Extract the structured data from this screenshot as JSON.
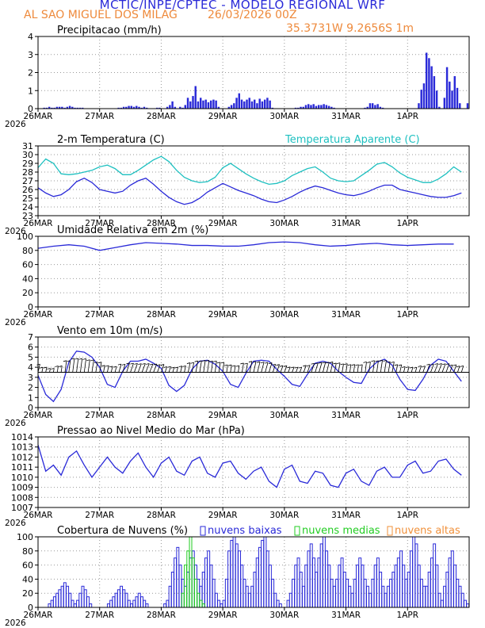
{
  "header": {
    "title": "MCTIC/INPE/CPTEC - MODELO REGIONAL WRF",
    "location": "AL SAO MIGUEL DOS MILAG",
    "datetime": "26/03/2026 00Z",
    "coords": "35.3731W 9.2656S 1m"
  },
  "colors": {
    "blue": "#2a2ad8",
    "cyan": "#1ec0c0",
    "green": "#22cc22",
    "orange": "#f0903a",
    "grid": "#999999"
  },
  "x_axis": {
    "tick_labels": [
      "26MAR",
      "27MAR",
      "28MAR",
      "29MAR",
      "30MAR",
      "31MAR",
      "1APR"
    ],
    "year_label": "2026",
    "hours": [
      0,
      168
    ],
    "tick_hours": [
      0,
      24,
      48,
      72,
      96,
      120,
      144
    ]
  },
  "chart_data": [
    {
      "id": "precip",
      "type": "bar",
      "title": "Precipitacao (mm/h)",
      "ylim": [
        0,
        4
      ],
      "yticks": [
        0,
        1,
        2,
        3,
        4
      ],
      "series": [
        {
          "name": "Precipitacao",
          "color": "#2a2ad8",
          "x_step_hours": 1,
          "values": [
            0,
            0,
            0.05,
            0.05,
            0.1,
            0.05,
            0.05,
            0.1,
            0.1,
            0.1,
            0.05,
            0.1,
            0.15,
            0.1,
            0.05,
            0.05,
            0.05,
            0.05,
            0,
            0,
            0,
            0,
            0,
            0,
            0,
            0,
            0,
            0,
            0,
            0,
            0,
            0.05,
            0.05,
            0.1,
            0.1,
            0.15,
            0.15,
            0.1,
            0.15,
            0.1,
            0.05,
            0.1,
            0.05,
            0,
            0,
            0,
            0.05,
            0.05,
            0,
            0,
            0.1,
            0.2,
            0.4,
            0.1,
            0,
            0.1,
            0.05,
            0.2,
            0.6,
            0.4,
            0.7,
            1.25,
            0.4,
            0.6,
            0.45,
            0.5,
            0.35,
            0.45,
            0.5,
            0.45,
            0.1,
            0,
            0,
            0,
            0.1,
            0.2,
            0.3,
            0.6,
            0.85,
            0.5,
            0.4,
            0.5,
            0.6,
            0.4,
            0.5,
            0.3,
            0.55,
            0.4,
            0.5,
            0.6,
            0.45,
            0.05,
            0,
            0,
            0,
            0,
            0,
            0,
            0,
            0,
            0.05,
            0.05,
            0.1,
            0.1,
            0.2,
            0.25,
            0.2,
            0.25,
            0.15,
            0.2,
            0.2,
            0.25,
            0.2,
            0.15,
            0.1,
            0.05,
            0,
            0,
            0,
            0,
            0,
            0,
            0,
            0,
            0,
            0,
            0,
            0.05,
            0.1,
            0.3,
            0.3,
            0.2,
            0.25,
            0.1,
            0.05,
            0,
            0,
            0,
            0,
            0,
            0,
            0,
            0,
            0,
            0,
            0,
            0,
            0,
            0.3,
            1.05,
            1.4,
            3.1,
            2.8,
            2.35,
            1.8,
            1.0,
            0.1,
            0,
            0.6,
            2.3,
            1.5,
            1.0,
            1.8,
            1.15,
            0.3,
            0,
            0,
            0.3
          ]
        }
      ]
    },
    {
      "id": "temp",
      "type": "line",
      "title": "2-m Temperatura (C)",
      "ylim": [
        23,
        31
      ],
      "yticks": [
        23,
        24,
        25,
        26,
        27,
        28,
        29,
        30,
        31
      ],
      "legend": "Temperatura Aparente (C)",
      "series": [
        {
          "name": "2-m Temperatura (C)",
          "color": "#2a2ad8",
          "x_step_hours": 3,
          "values": [
            26.2,
            25.6,
            25.2,
            25.4,
            26.0,
            26.9,
            27.3,
            26.8,
            26.0,
            25.8,
            25.6,
            25.8,
            26.5,
            27.0,
            27.3,
            26.6,
            25.8,
            25.1,
            24.6,
            24.3,
            24.5,
            25.0,
            25.7,
            26.2,
            26.7,
            26.3,
            25.9,
            25.6,
            25.3,
            24.9,
            24.6,
            24.5,
            24.8,
            25.2,
            25.7,
            26.1,
            26.4,
            26.2,
            25.9,
            25.6,
            25.4,
            25.3,
            25.5,
            25.8,
            26.2,
            26.5,
            26.5,
            26.0,
            25.8,
            25.6,
            25.4,
            25.2,
            25.1,
            25.1,
            25.3,
            25.6
          ]
        },
        {
          "name": "Temperatura Aparente (C)",
          "color": "#1ec0c0",
          "x_step_hours": 3,
          "values": [
            28.5,
            29.5,
            29.0,
            27.8,
            27.7,
            27.8,
            28.0,
            28.2,
            28.6,
            28.8,
            28.4,
            27.7,
            27.7,
            28.2,
            28.8,
            29.4,
            29.8,
            29.2,
            28.2,
            27.4,
            27.0,
            26.8,
            26.9,
            27.4,
            28.5,
            29.0,
            28.4,
            27.8,
            27.3,
            26.9,
            26.6,
            26.7,
            27.0,
            27.6,
            28.0,
            28.4,
            28.6,
            28.0,
            27.3,
            27.0,
            26.9,
            27.0,
            27.6,
            28.2,
            28.9,
            29.1,
            28.6,
            27.9,
            27.4,
            27.1,
            26.8,
            26.8,
            27.2,
            27.8,
            28.6,
            28.0
          ]
        }
      ]
    },
    {
      "id": "rh",
      "type": "line",
      "title": "Umidade Relativa em 2m (%)",
      "ylim": [
        0,
        100
      ],
      "yticks": [
        0,
        20,
        40,
        60,
        80,
        100
      ],
      "series": [
        {
          "name": "Umidade Relativa",
          "color": "#2a2ad8",
          "x_step_hours": 6,
          "values": [
            83,
            86,
            88,
            86,
            80,
            84,
            88,
            91,
            90,
            89,
            87,
            87,
            86,
            86,
            88,
            91,
            92,
            91,
            88,
            86,
            87,
            89,
            90,
            88,
            87,
            88,
            89,
            89
          ]
        }
      ]
    },
    {
      "id": "wind",
      "type": "line",
      "title": "Vento em 10m (m/s)",
      "ylim": [
        0,
        7
      ],
      "yticks": [
        0,
        1,
        2,
        3,
        4,
        5,
        6,
        7
      ],
      "barbs_at_ms": 3.5,
      "series": [
        {
          "name": "Vento em 10m",
          "color": "#2a2ad8",
          "x_step_hours": 3,
          "values": [
            3.2,
            1.3,
            0.6,
            1.8,
            4.5,
            5.6,
            5.5,
            5.0,
            4.0,
            2.3,
            2.0,
            3.6,
            4.6,
            4.6,
            4.8,
            4.4,
            3.9,
            2.2,
            1.6,
            2.2,
            3.8,
            4.6,
            4.7,
            4.3,
            3.6,
            2.3,
            2.0,
            3.4,
            4.6,
            4.7,
            4.6,
            3.8,
            3.1,
            2.3,
            2.1,
            3.3,
            4.4,
            4.6,
            4.4,
            3.6,
            3.0,
            2.5,
            2.4,
            3.8,
            4.5,
            4.8,
            4.2,
            2.8,
            1.8,
            1.7,
            2.8,
            4.2,
            4.8,
            4.6,
            3.6,
            2.6
          ]
        }
      ]
    },
    {
      "id": "pressure",
      "type": "line",
      "title": "Pressao ao Nivel Medio do Mar (hPa)",
      "ylim": [
        1007,
        1014
      ],
      "yticks": [
        1007,
        1008,
        1009,
        1010,
        1011,
        1012,
        1013,
        1014
      ],
      "series": [
        {
          "name": "Pressao",
          "color": "#2a2ad8",
          "x_step_hours": 3,
          "values": [
            1013.2,
            1010.6,
            1011.2,
            1010.2,
            1012.0,
            1012.6,
            1011.2,
            1010.0,
            1011.0,
            1012.0,
            1011.0,
            1010.4,
            1011.6,
            1012.4,
            1011.0,
            1010.0,
            1011.4,
            1012.0,
            1010.6,
            1010.2,
            1011.6,
            1012.0,
            1010.4,
            1010.0,
            1011.4,
            1011.6,
            1010.4,
            1009.8,
            1010.6,
            1011.0,
            1009.6,
            1009.0,
            1010.8,
            1011.2,
            1009.6,
            1009.4,
            1010.6,
            1010.4,
            1009.2,
            1009.0,
            1010.4,
            1010.8,
            1009.6,
            1009.2,
            1010.6,
            1011.0,
            1010.0,
            1010.0,
            1011.2,
            1011.6,
            1010.4,
            1010.6,
            1011.6,
            1011.8,
            1010.8,
            1010.2
          ]
        }
      ]
    },
    {
      "id": "clouds",
      "type": "bar",
      "title": "Cobertura de Nuvens (%)",
      "ylim": [
        0,
        100
      ],
      "yticks": [
        0,
        20,
        40,
        60,
        80,
        100
      ],
      "legend": [
        "nuvens baixas",
        "nuvens medias",
        "nuvens altas"
      ],
      "series": [
        {
          "name": "nuvens baixas",
          "color": "#2a2ad8",
          "x_step_hours": 1,
          "values": [
            0,
            0,
            0,
            0,
            5,
            10,
            15,
            20,
            25,
            30,
            35,
            30,
            20,
            10,
            5,
            10,
            20,
            30,
            25,
            15,
            5,
            0,
            0,
            0,
            0,
            0,
            0,
            5,
            10,
            15,
            20,
            25,
            30,
            25,
            20,
            10,
            5,
            10,
            15,
            20,
            15,
            10,
            5,
            0,
            0,
            0,
            0,
            0,
            0,
            5,
            10,
            30,
            50,
            70,
            85,
            60,
            40,
            30,
            50,
            70,
            80,
            60,
            40,
            30,
            50,
            70,
            80,
            60,
            40,
            20,
            10,
            5,
            10,
            40,
            80,
            95,
            100,
            90,
            80,
            60,
            40,
            30,
            20,
            30,
            50,
            70,
            85,
            95,
            100,
            80,
            60,
            40,
            20,
            10,
            5,
            0,
            0,
            10,
            20,
            40,
            60,
            70,
            50,
            30,
            60,
            80,
            90,
            70,
            50,
            70,
            90,
            100,
            80,
            60,
            40,
            30,
            40,
            60,
            70,
            50,
            40,
            30,
            20,
            40,
            60,
            70,
            60,
            40,
            30,
            20,
            40,
            60,
            70,
            50,
            30,
            20,
            30,
            40,
            50,
            60,
            70,
            80,
            60,
            40,
            50,
            80,
            100,
            90,
            60,
            40,
            30,
            30,
            50,
            70,
            90,
            60,
            20,
            10,
            30,
            50,
            70,
            80,
            60,
            40,
            30,
            20,
            10,
            5
          ]
        },
        {
          "name": "nuvens medias",
          "color": "#22cc22",
          "x_step_hours": 1,
          "values": [
            0,
            0,
            0,
            0,
            0,
            0,
            0,
            0,
            0,
            0,
            0,
            0,
            0,
            0,
            0,
            0,
            0,
            0,
            0,
            0,
            0,
            0,
            0,
            0,
            0,
            0,
            0,
            0,
            0,
            0,
            0,
            0,
            0,
            0,
            0,
            0,
            0,
            0,
            0,
            0,
            0,
            0,
            0,
            0,
            0,
            0,
            0,
            0,
            0,
            0,
            0,
            0,
            0,
            0,
            0,
            0,
            20,
            60,
            80,
            100,
            70,
            40,
            20,
            10,
            5,
            0,
            0,
            0,
            0,
            0,
            0,
            0,
            0,
            0,
            0,
            0,
            0,
            0,
            0,
            0,
            0,
            0,
            0,
            0,
            0,
            0,
            0,
            0,
            0,
            0,
            0,
            0,
            0,
            0,
            0,
            0,
            0,
            0,
            0,
            0,
            0,
            0,
            0,
            0,
            0,
            0,
            0,
            0,
            0,
            0,
            0,
            0,
            0,
            0,
            0,
            0,
            0,
            0,
            0,
            0,
            0,
            0,
            0,
            0,
            0,
            0,
            0,
            0,
            0,
            0,
            0,
            0,
            0,
            0,
            0,
            0,
            0,
            0,
            0,
            0,
            0,
            0,
            0,
            0,
            0,
            0,
            0,
            0,
            0,
            0,
            0,
            0,
            0,
            0,
            0,
            0,
            0,
            0,
            0,
            0,
            0,
            0,
            0,
            0,
            0,
            0,
            0,
            0
          ]
        },
        {
          "name": "nuvens altas",
          "color": "#f0903a",
          "x_step_hours": 1,
          "values": [
            0,
            0,
            0,
            0,
            0,
            0,
            0,
            0,
            0,
            0,
            0,
            0,
            0,
            0,
            0,
            0,
            0,
            0,
            0,
            0,
            0,
            0,
            0,
            0,
            0,
            0,
            0,
            0,
            0,
            0,
            0,
            0,
            0,
            0,
            0,
            0,
            0,
            0,
            0,
            0,
            0,
            0,
            0,
            0,
            0,
            0,
            0,
            0,
            0,
            0,
            0,
            0,
            0,
            0,
            0,
            0,
            0,
            0,
            0,
            0,
            0,
            0,
            0,
            0,
            0,
            0,
            0,
            0,
            0,
            0,
            0,
            0,
            0,
            0,
            0,
            0,
            0,
            0,
            0,
            0,
            0,
            0,
            0,
            0,
            0,
            0,
            0,
            0,
            0,
            0,
            0,
            0,
            0,
            0,
            0,
            0,
            0,
            0,
            0,
            0,
            0,
            0,
            0,
            0,
            0,
            0,
            0,
            0,
            0,
            0,
            0,
            0,
            0,
            0,
            0,
            0,
            0,
            0,
            0,
            0,
            0,
            0,
            0,
            0,
            0,
            0,
            0,
            0,
            0,
            0,
            0,
            0,
            0,
            0,
            0,
            0,
            0,
            0,
            0,
            0,
            0,
            0,
            0,
            0,
            0,
            0,
            0,
            0,
            0,
            0,
            0,
            0,
            0,
            0,
            0,
            0,
            0,
            0,
            0,
            0,
            0,
            0,
            0,
            0,
            0,
            0,
            0,
            0
          ]
        }
      ]
    }
  ]
}
